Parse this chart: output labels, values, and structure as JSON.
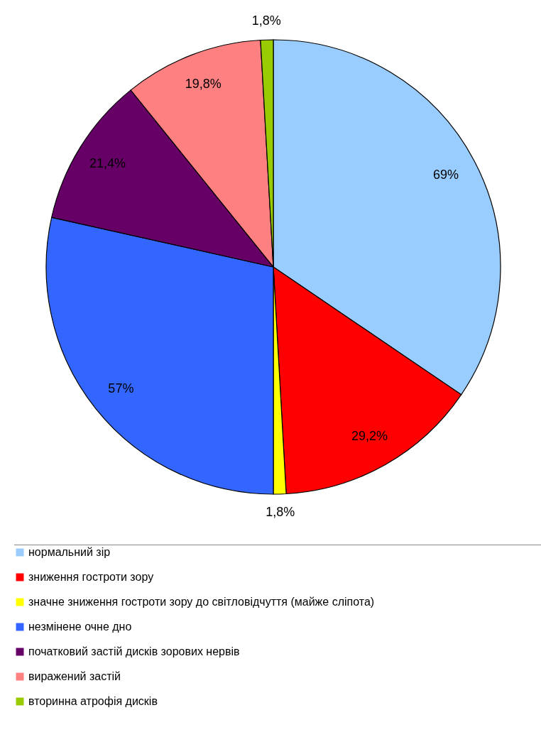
{
  "chart_data": {
    "type": "pie",
    "categories": [
      "нормальний зір",
      "зниження гостроти зору",
      "значне зниження гостроти зору до світловідчуття (майже сліпота)",
      "незмінене очне дно",
      "початковий застій дисків зорових нервів",
      "виражений застій",
      "вторинна атрофія дисків"
    ],
    "values": [
      69,
      29.2,
      1.8,
      57,
      21.4,
      19.8,
      1.8
    ],
    "value_labels": [
      "69%",
      "29,2%",
      "1,8%",
      "57%",
      "21,4%",
      "19,8%",
      "1,8%"
    ],
    "colors": [
      "#99ccff",
      "#ff0000",
      "#ffff00",
      "#3366ff",
      "#660066",
      "#ff8080",
      "#99cc00"
    ],
    "legend": "bottom"
  }
}
